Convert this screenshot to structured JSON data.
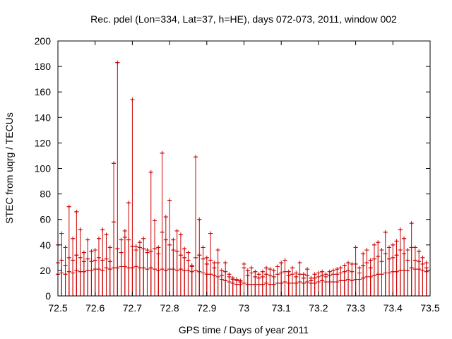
{
  "chart_data": {
    "type": "scatter",
    "title": "Rec. pdel (Lon=334, Lat=37, h=HE), days 072-073, 2011, window 002",
    "xlabel": "GPS time / Days of year 2011",
    "ylabel": "STEC from uqrg / TECUs",
    "xlim": [
      72.5,
      73.5
    ],
    "ylim": [
      0,
      200
    ],
    "xticks": [
      "72.5",
      "72.6",
      "72.7",
      "72.8",
      "72.9",
      "73",
      "73.1",
      "73.2",
      "73.3",
      "73.4",
      "73.5"
    ],
    "yticks": [
      "0",
      "20",
      "40",
      "60",
      "80",
      "100",
      "120",
      "140",
      "160",
      "180",
      "200"
    ],
    "series_color": "#cc0000",
    "grid": false,
    "marker": "plus with vertical error bar down to 0",
    "series": [
      {
        "x": [
          72.5,
          72.51,
          72.52,
          72.53,
          72.54,
          72.55,
          72.56,
          72.57,
          72.58,
          72.59,
          72.6,
          72.61,
          72.62,
          72.63,
          72.64,
          72.65,
          72.66,
          72.67,
          72.68,
          72.69,
          72.7,
          72.71,
          72.72,
          72.73,
          72.74,
          72.75,
          72.76,
          72.77,
          72.78,
          72.79,
          72.8,
          72.81,
          72.82,
          72.83,
          72.84,
          72.85,
          72.86,
          72.87,
          72.88,
          72.89,
          72.9,
          72.91,
          72.92,
          72.93,
          72.94,
          72.95,
          72.96,
          72.97,
          72.98,
          72.99,
          73.0,
          73.01,
          73.02,
          73.03,
          73.04,
          73.05,
          73.06,
          73.07,
          73.08,
          73.09,
          73.1,
          73.11,
          73.12,
          73.13,
          73.14,
          73.15,
          73.16,
          73.17,
          73.18,
          73.19,
          73.2,
          73.21,
          73.22,
          73.23,
          73.24,
          73.25,
          73.26,
          73.27,
          73.28,
          73.29,
          73.3,
          73.31,
          73.32,
          73.33,
          73.34,
          73.35,
          73.36,
          73.37,
          73.38,
          73.39,
          73.4,
          73.41,
          73.42,
          73.43,
          73.44,
          73.45,
          73.46,
          73.47,
          73.48,
          73.49
        ],
        "y": [
          40,
          49,
          38,
          70,
          45,
          66,
          52,
          34,
          44,
          35,
          36,
          45,
          52,
          48,
          38,
          104,
          183,
          44,
          51,
          73,
          154,
          39,
          42,
          45,
          36,
          97,
          59,
          38,
          112,
          62,
          75,
          44,
          51,
          48,
          37,
          34,
          24,
          109,
          60,
          38,
          30,
          49,
          26,
          36,
          20,
          26,
          17,
          14,
          13,
          12,
          25,
          20,
          22,
          19,
          17,
          19,
          22,
          21,
          20,
          23,
          26,
          28,
          19,
          22,
          18,
          26,
          17,
          21,
          14,
          17,
          18,
          19,
          17,
          19,
          20,
          21,
          22,
          24,
          26,
          25,
          38,
          22,
          33,
          36,
          28,
          40,
          42,
          36,
          50,
          38,
          40,
          43,
          52,
          45,
          36,
          57,
          38,
          35,
          30,
          26
        ]
      },
      {
        "x": [
          72.5,
          72.51,
          72.52,
          72.53,
          72.54,
          72.55,
          72.56,
          72.57,
          72.58,
          72.59,
          72.6,
          72.61,
          72.62,
          72.63,
          72.64,
          72.65,
          72.66,
          72.67,
          72.68,
          72.69,
          72.7,
          72.71,
          72.72,
          72.73,
          72.74,
          72.75,
          72.76,
          72.77,
          72.78,
          72.79,
          72.8,
          72.81,
          72.82,
          72.83,
          72.84,
          72.85,
          72.86,
          72.87,
          72.88,
          72.89,
          72.9,
          72.91,
          72.92,
          72.93,
          72.94,
          72.95,
          72.96,
          72.97,
          72.98,
          72.99,
          73.0,
          73.01,
          73.02,
          73.03,
          73.04,
          73.05,
          73.06,
          73.07,
          73.08,
          73.09,
          73.1,
          73.11,
          73.12,
          73.13,
          73.14,
          73.15,
          73.16,
          73.17,
          73.18,
          73.19,
          73.2,
          73.21,
          73.22,
          73.23,
          73.24,
          73.25,
          73.26,
          73.27,
          73.28,
          73.29,
          73.3,
          73.31,
          73.32,
          73.33,
          73.34,
          73.35,
          73.36,
          73.37,
          73.38,
          73.39,
          73.4,
          73.41,
          73.42,
          73.43,
          73.44,
          73.45,
          73.46,
          73.47,
          73.48,
          73.49
        ],
        "y": [
          26,
          28,
          24,
          30,
          28,
          32,
          30,
          27,
          29,
          27,
          28,
          30,
          28,
          29,
          27,
          58,
          37,
          34,
          46,
          44,
          39,
          36,
          38,
          37,
          34,
          35,
          37,
          33,
          50,
          44,
          40,
          36,
          35,
          32,
          30,
          28,
          23,
          30,
          32,
          29,
          25,
          28,
          22,
          26,
          16,
          19,
          15,
          13,
          12,
          11,
          22,
          16,
          18,
          15,
          14,
          15,
          17,
          16,
          15,
          17,
          18,
          19,
          16,
          17,
          15,
          17,
          14,
          16,
          12,
          14,
          15,
          16,
          15,
          16,
          17,
          17,
          18,
          19,
          20,
          19,
          25,
          18,
          24,
          26,
          22,
          29,
          31,
          27,
          33,
          29,
          30,
          32,
          36,
          33,
          28,
          38,
          28,
          27,
          25,
          22
        ]
      },
      {
        "x": [
          72.5,
          72.51,
          72.52,
          72.53,
          72.54,
          72.55,
          72.56,
          72.57,
          72.58,
          72.59,
          72.6,
          72.61,
          72.62,
          72.63,
          72.64,
          72.65,
          72.66,
          72.67,
          72.68,
          72.69,
          72.7,
          72.71,
          72.72,
          72.73,
          72.74,
          72.75,
          72.76,
          72.77,
          72.78,
          72.79,
          72.8,
          72.81,
          72.82,
          72.83,
          72.84,
          72.85,
          72.86,
          72.87,
          72.88,
          72.89,
          72.9,
          72.91,
          72.92,
          72.93,
          72.94,
          72.95,
          72.96,
          72.97,
          72.98,
          72.99,
          73.0,
          73.01,
          73.02,
          73.03,
          73.04,
          73.05,
          73.06,
          73.07,
          73.08,
          73.09,
          73.1,
          73.11,
          73.12,
          73.13,
          73.14,
          73.15,
          73.16,
          73.17,
          73.18,
          73.19,
          73.2,
          73.21,
          73.22,
          73.23,
          73.24,
          73.25,
          73.26,
          73.27,
          73.28,
          73.29,
          73.3,
          73.31,
          73.32,
          73.33,
          73.34,
          73.35,
          73.36,
          73.37,
          73.38,
          73.39,
          73.4,
          73.41,
          73.42,
          73.43,
          73.44,
          73.45,
          73.46,
          73.47,
          73.48,
          73.49
        ],
        "y": [
          17,
          18,
          17,
          19,
          18,
          20,
          19,
          19,
          20,
          20,
          21,
          21,
          20,
          22,
          21,
          22,
          22,
          23,
          23,
          22,
          22,
          23,
          22,
          22,
          21,
          22,
          21,
          20,
          21,
          20,
          21,
          21,
          20,
          21,
          20,
          20,
          19,
          20,
          19,
          18,
          17,
          17,
          16,
          15,
          13,
          12,
          11,
          10,
          9,
          9,
          10,
          9,
          9,
          9,
          9,
          9,
          10,
          9,
          9,
          10,
          10,
          11,
          10,
          10,
          10,
          11,
          10,
          11,
          10,
          10,
          11,
          12,
          11,
          11,
          11,
          11,
          12,
          12,
          13,
          12,
          13,
          13,
          14,
          15,
          15,
          16,
          17,
          17,
          18,
          18,
          19,
          19,
          20,
          20,
          20,
          22,
          21,
          21,
          20,
          19
        ]
      }
    ]
  }
}
